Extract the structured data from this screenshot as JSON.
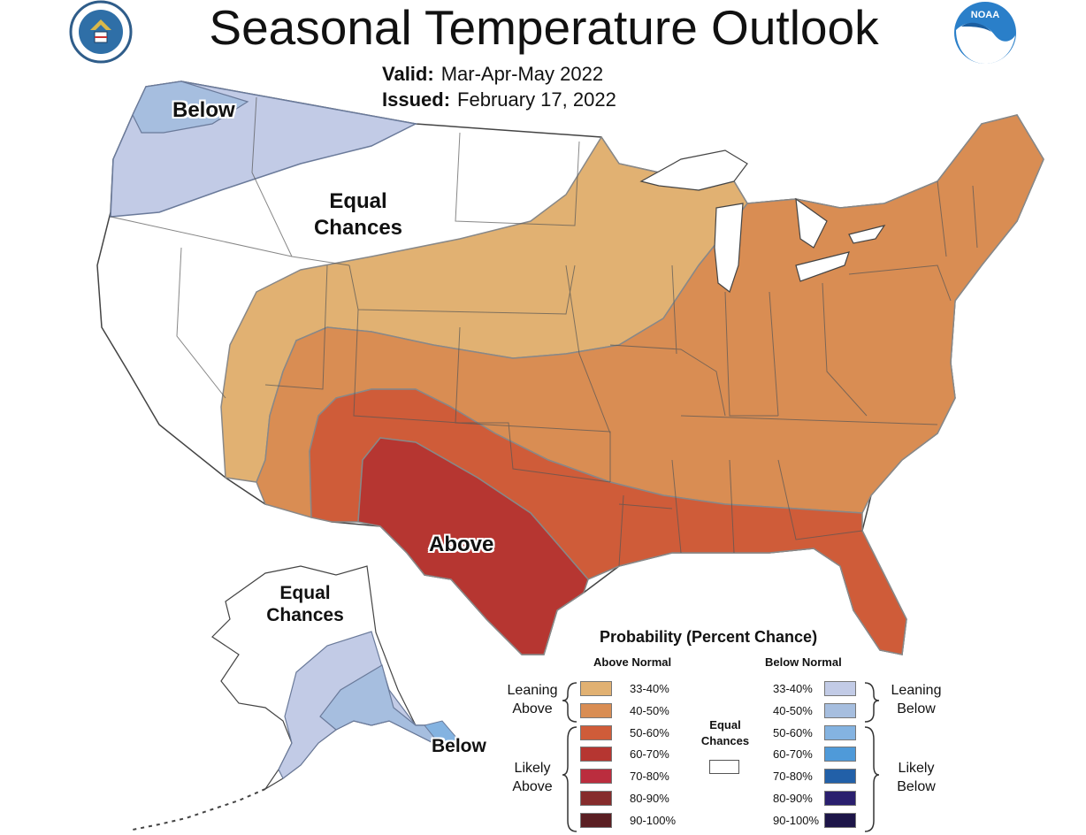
{
  "header": {
    "title": "Seasonal Temperature Outlook",
    "valid_label": "Valid:",
    "valid_value": "Mar-Apr-May 2022",
    "issued_label": "Issued:",
    "issued_value": "February 17, 2022"
  },
  "logos": {
    "left": "doc-seal",
    "right": "noaa-logo",
    "right_text": "NOAA",
    "left_text": "DEPARTMENT OF COMMERCE"
  },
  "map_labels": {
    "below_pnw": "Below",
    "equal_chances_west_line1": "Equal",
    "equal_chances_west_line2": "Chances",
    "above": "Above",
    "equal_chances_ak_line1": "Equal",
    "equal_chances_ak_line2": "Chances",
    "below_ak": "Below"
  },
  "legend": {
    "title": "Probability (Percent Chance)",
    "above_header": "Above Normal",
    "below_header": "Below Normal",
    "equal_chances_line1": "Equal",
    "equal_chances_line2": "Chances",
    "leaning_above_line1": "Leaning",
    "leaning_above_line2": "Above",
    "likely_above_line1": "Likely",
    "likely_above_line2": "Above",
    "leaning_below_line1": "Leaning",
    "leaning_below_line2": "Below",
    "likely_below_line1": "Likely",
    "likely_below_line2": "Below",
    "above": [
      {
        "label": "33-40%",
        "color": "#e1b172"
      },
      {
        "label": "40-50%",
        "color": "#d98d53"
      },
      {
        "label": "50-60%",
        "color": "#cf5c39"
      },
      {
        "label": "60-70%",
        "color": "#b63631"
      },
      {
        "label": "70-80%",
        "color": "#bb2d3e"
      },
      {
        "label": "80-90%",
        "color": "#862c2c"
      },
      {
        "label": "90-100%",
        "color": "#5a1e22"
      }
    ],
    "below": [
      {
        "label": "33-40%",
        "color": "#c2cbe6"
      },
      {
        "label": "40-50%",
        "color": "#a6bedf"
      },
      {
        "label": "50-60%",
        "color": "#84b3e1"
      },
      {
        "label": "60-70%",
        "color": "#4f9ad9"
      },
      {
        "label": "70-80%",
        "color": "#2260a8"
      },
      {
        "label": "80-90%",
        "color": "#2a1f6e"
      },
      {
        "label": "90-100%",
        "color": "#1d1548"
      }
    ]
  }
}
